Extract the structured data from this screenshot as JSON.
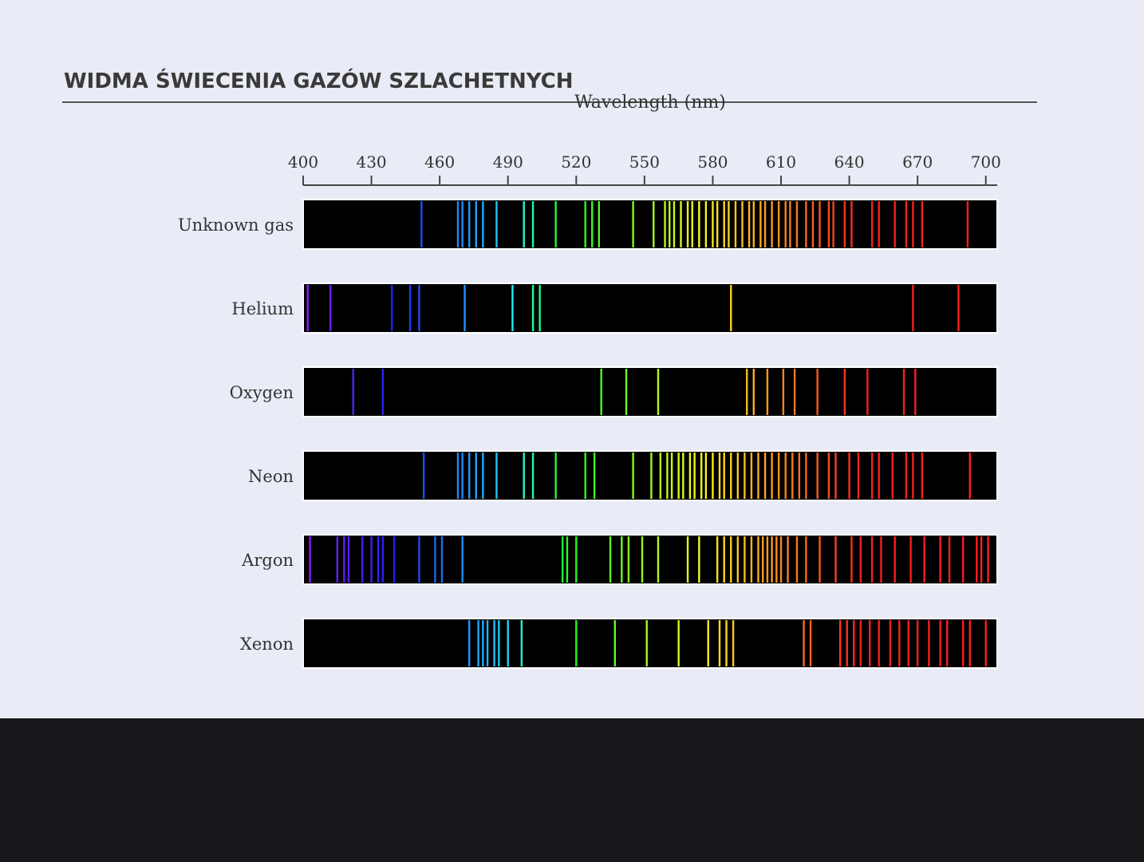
{
  "chart_data": {
    "type": "spectrum",
    "title": "WIDMA ŚWIECENIA GAZÓW SZLACHETNYCH",
    "x_label": "Wavelength (nm)",
    "xlim": [
      400,
      705
    ],
    "xticks": [
      400,
      430,
      460,
      490,
      520,
      550,
      580,
      610,
      640,
      670,
      700
    ],
    "background": "#000000",
    "series": [
      {
        "name": "Unknown gas",
        "values": [
          452,
          468,
          470,
          473,
          476,
          479,
          485,
          497,
          501,
          511,
          524,
          527,
          530,
          545,
          554,
          559,
          561,
          563,
          566,
          569,
          571,
          574,
          577,
          580,
          582,
          585,
          587,
          590,
          593,
          596,
          598,
          601,
          603,
          606,
          609,
          612,
          614,
          617,
          621,
          624,
          627,
          631,
          633,
          638,
          641,
          650,
          653,
          660,
          665,
          668,
          672,
          692
        ]
      },
      {
        "name": "Helium",
        "values": [
          402,
          412,
          439,
          447,
          451,
          471,
          492,
          501,
          504,
          588,
          668,
          688
        ]
      },
      {
        "name": "Oxygen",
        "values": [
          422,
          435,
          531,
          542,
          556,
          595,
          598,
          604,
          611,
          616,
          626,
          638,
          648,
          664,
          669
        ]
      },
      {
        "name": "Neon",
        "values": [
          453,
          468,
          470,
          473,
          476,
          479,
          485,
          497,
          501,
          511,
          524,
          528,
          545,
          553,
          557,
          560,
          562,
          565,
          567,
          570,
          572,
          575,
          577,
          580,
          583,
          585,
          588,
          591,
          594,
          597,
          600,
          603,
          606,
          609,
          612,
          615,
          618,
          621,
          626,
          631,
          634,
          640,
          644,
          650,
          653,
          659,
          665,
          668,
          672,
          693
        ]
      },
      {
        "name": "Argon",
        "values": [
          403,
          415,
          418,
          420,
          426,
          430,
          433,
          435,
          440,
          451,
          458,
          461,
          470,
          514,
          516,
          520,
          535,
          540,
          543,
          549,
          556,
          569,
          574,
          582,
          585,
          588,
          591,
          594,
          597,
          600,
          602,
          604,
          606,
          608,
          610,
          613,
          617,
          621,
          627,
          634,
          641,
          645,
          650,
          654,
          660,
          667,
          673,
          680,
          684,
          690,
          696,
          698,
          701
        ]
      },
      {
        "name": "Xenon",
        "values": [
          473,
          477,
          479,
          481,
          484,
          486,
          490,
          496,
          520,
          537,
          551,
          565,
          578,
          583,
          586,
          589,
          620,
          623,
          636,
          639,
          642,
          645,
          649,
          653,
          658,
          662,
          666,
          670,
          675,
          680,
          683,
          690,
          693,
          700
        ]
      }
    ]
  }
}
